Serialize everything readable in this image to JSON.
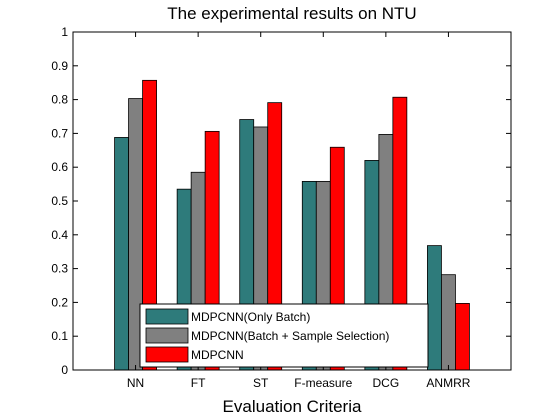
{
  "chart_data": {
    "type": "bar",
    "title": "The experimental results on NTU",
    "xlabel": "Evaluation Criteria",
    "ylabel": "",
    "ylim": [
      0,
      1
    ],
    "yticks": [
      "0",
      "0.1",
      "0.2",
      "0.3",
      "0.4",
      "0.5",
      "0.6",
      "0.7",
      "0.8",
      "0.9",
      "1"
    ],
    "categories": [
      "NN",
      "FT",
      "ST",
      "F-measure",
      "DCG",
      "ANMRR"
    ],
    "grid": false,
    "legend_position": "bottom-center",
    "series": [
      {
        "name": "MDPCNN(Only Batch)",
        "color": "#2e7b7b",
        "values": [
          0.688,
          0.535,
          0.741,
          0.558,
          0.62,
          0.368
        ]
      },
      {
        "name": "MDPCNN(Batch + Sample Selection)",
        "color": "#808080",
        "values": [
          0.803,
          0.585,
          0.719,
          0.558,
          0.697,
          0.282
        ]
      },
      {
        "name": "MDPCNN",
        "color": "#ff0000",
        "values": [
          0.857,
          0.706,
          0.791,
          0.659,
          0.807,
          0.197
        ]
      }
    ]
  }
}
